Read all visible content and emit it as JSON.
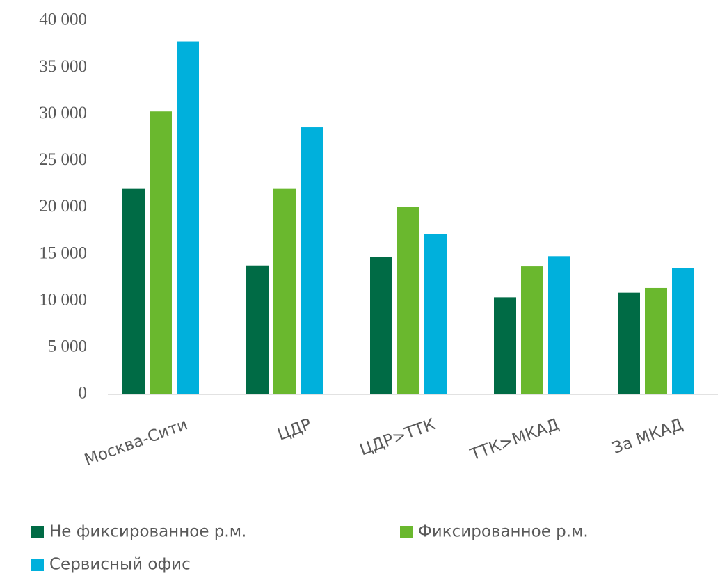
{
  "chart_data": {
    "type": "bar",
    "categories": [
      "Москва-Сити",
      "ЦДР",
      "ЦДР>ТТК",
      "ТТК>МКАД",
      "За МКАД"
    ],
    "series": [
      {
        "name": "Не фиксированное р.м.",
        "color": "#006b45",
        "values": [
          22000,
          13800,
          14700,
          10400,
          10900
        ]
      },
      {
        "name": "Фиксированное р.м.",
        "color": "#6ab82e",
        "values": [
          30300,
          22000,
          20100,
          13700,
          11400
        ]
      },
      {
        "name": "Сервисный офис",
        "color": "#00b0dc",
        "values": [
          37800,
          28600,
          17200,
          14800,
          13500
        ]
      }
    ],
    "ylim": [
      0,
      40000
    ],
    "yticks": [
      0,
      {
        "value": 5000,
        "label": "5 000"
      },
      {
        "value": 10000,
        "label": "10 000"
      },
      {
        "value": 15000,
        "label": "15 000"
      },
      {
        "value": 20000,
        "label": "20 000"
      },
      {
        "value": 25000,
        "label": "25 000"
      },
      {
        "value": 30000,
        "label": "30 000"
      },
      {
        "value": 35000,
        "label": "35 000"
      },
      {
        "value": 40000,
        "label": "40 000"
      }
    ],
    "grid": false,
    "legend": "bottom"
  }
}
